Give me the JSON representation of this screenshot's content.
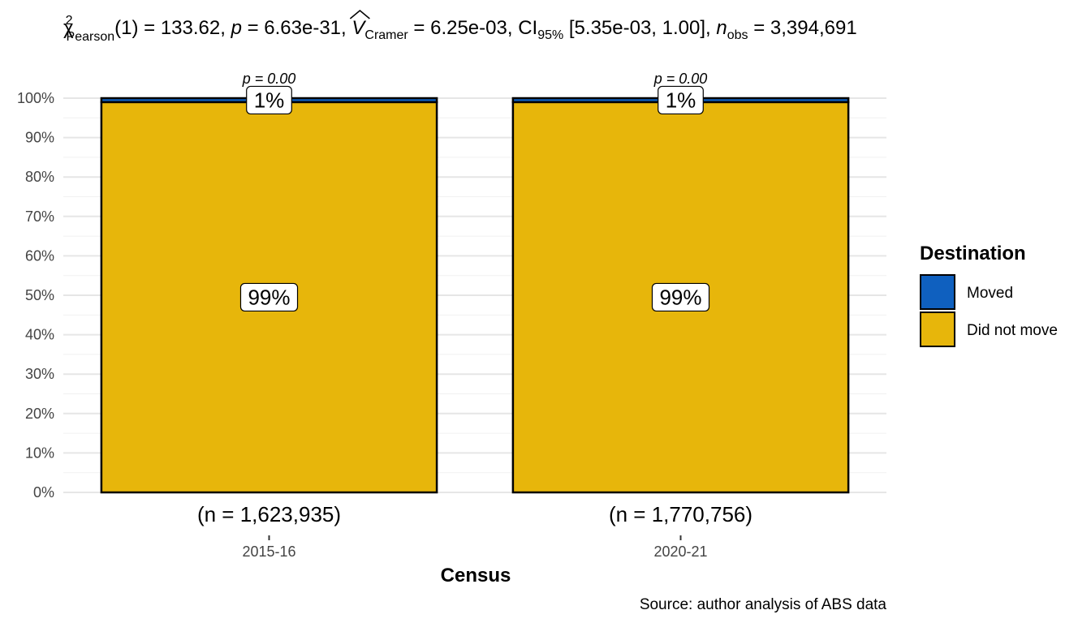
{
  "chart_data": {
    "type": "bar",
    "stacked": true,
    "percent_scale": true,
    "subtitle": {
      "stat_symbol": "χ",
      "stat_sup": "2",
      "stat_sub": "Pearson",
      "df": "(1)",
      "stat_value": "133.62",
      "p_symbol": "p",
      "p_value": "6.63e-31",
      "effect_symbol": "V",
      "effect_sub": "Cramer",
      "effect_value": "6.25e-03",
      "ci_label": "CI",
      "ci_sub": "95%",
      "ci_value": "[5.35e-03, 1.00]",
      "n_symbol": "n",
      "n_sub": "obs",
      "n_value": "3,394,691"
    },
    "xlabel": "Census",
    "ylabel": "",
    "categories": [
      "2015-16",
      "2020-21"
    ],
    "sample_sizes": [
      "(n = 1,623,935)",
      "(n = 1,770,756)"
    ],
    "p_labels": [
      "p = 0.00",
      "p = 0.00"
    ],
    "series": [
      {
        "name": "Did not move",
        "values": [
          99,
          99
        ],
        "labels": [
          "99%",
          "99%"
        ],
        "color": "#E7B60B"
      },
      {
        "name": "Moved",
        "values": [
          1,
          1
        ],
        "labels": [
          "1%",
          "1%"
        ],
        "color": "#0F60BF"
      }
    ],
    "ylim": [
      0,
      100
    ],
    "yticks": [
      "0%",
      "10%",
      "20%",
      "30%",
      "40%",
      "50%",
      "60%",
      "70%",
      "80%",
      "90%",
      "100%"
    ],
    "grid": true,
    "legend": {
      "title": "Destination",
      "position": "right",
      "entries": [
        {
          "label": "Moved",
          "color": "#0F60BF"
        },
        {
          "label": "Did not move",
          "color": "#E7B60B"
        }
      ]
    },
    "caption": "Source: author analysis of ABS data"
  }
}
